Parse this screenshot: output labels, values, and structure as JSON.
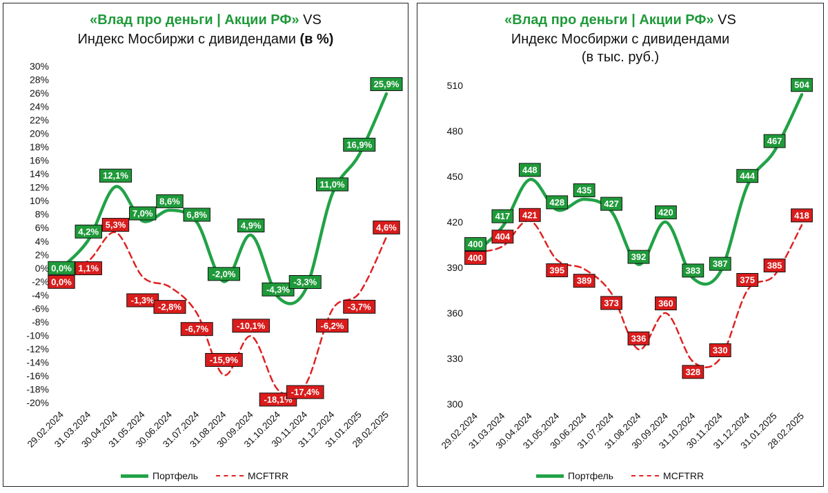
{
  "colors": {
    "portfolio": "#22a247",
    "portfolio_label_bg": "#1f9a3a",
    "index": "#e02020",
    "index_label_bg": "#d91c1c",
    "brand": "#1f9a3a"
  },
  "chart_data": [
    {
      "type": "line",
      "title_brand": "«Влад про деньги | Акции РФ»",
      "title_vs": " VS",
      "title_line2": "Индекс Мосбиржи с дивидендами ",
      "title_unit": "(в %)",
      "categories": [
        "29.02.2024",
        "31.03.2024",
        "30.04.2024",
        "31.05.2024",
        "30.06.2024",
        "31.07.2024",
        "31.08.2024",
        "30.09.2024",
        "31.10.2024",
        "30.11.2024",
        "31.12.2024",
        "31.01.2025",
        "28.02.2025"
      ],
      "ylim": [
        -20,
        30
      ],
      "ystep": 2,
      "yticks": [
        "-20%",
        "-18%",
        "-16%",
        "-14%",
        "-12%",
        "-10%",
        "-8%",
        "-6%",
        "-4%",
        "-2%",
        "0%",
        "2%",
        "4%",
        "6%",
        "8%",
        "10%",
        "12%",
        "14%",
        "16%",
        "18%",
        "20%",
        "22%",
        "24%",
        "26%",
        "28%",
        "30%"
      ],
      "series": [
        {
          "name": "Портфель",
          "values": [
            0.0,
            4.2,
            12.1,
            7.0,
            8.6,
            6.8,
            -2.0,
            4.9,
            -4.3,
            -3.3,
            11.0,
            16.9,
            25.9
          ],
          "labels": [
            "0,0%",
            "4,2%",
            "12,1%",
            "7,0%",
            "8,6%",
            "6,8%",
            "-2,0%",
            "4,9%",
            "-4,3%",
            "-3,3%",
            "11,0%",
            "16,9%",
            "25,9%"
          ]
        },
        {
          "name": "MCFTRR",
          "values": [
            0.0,
            1.1,
            5.3,
            -1.3,
            -2.8,
            -6.7,
            -15.9,
            -10.1,
            -18.1,
            -17.4,
            -6.2,
            -3.7,
            4.6
          ],
          "labels": [
            "0,0%",
            "1,1%",
            "5,3%",
            "-1,3%",
            "-2,8%",
            "-6,7%",
            "-15,9%",
            "-10,1%",
            "-18,1%",
            "-17,4%",
            "-6,2%",
            "-3,7%",
            "4,6%"
          ]
        }
      ],
      "legend": [
        "Портфель",
        "MCFTRR"
      ]
    },
    {
      "type": "line",
      "title_brand": "«Влад про деньги | Акции РФ»",
      "title_vs": " VS",
      "title_line2": "Индекс Мосбиржи с дивидендами",
      "title_unit": "(в тыс. руб.)",
      "categories": [
        "29.02.2024",
        "31.03.2024",
        "30.04.2024",
        "31.05.2024",
        "30.06.2024",
        "31.07.2024",
        "31.08.2024",
        "30.09.2024",
        "31.10.2024",
        "30.11.2024",
        "31.12.2024",
        "31.01.2025",
        "28.02.2025"
      ],
      "ylim": [
        300,
        510
      ],
      "ystep": 30,
      "yticks": [
        "300",
        "330",
        "360",
        "390",
        "420",
        "450",
        "480",
        "510"
      ],
      "series": [
        {
          "name": "Портфель",
          "values": [
            400,
            417,
            448,
            428,
            435,
            427,
            392,
            420,
            383,
            387,
            444,
            467,
            504
          ],
          "labels": [
            "400",
            "417",
            "448",
            "428",
            "435",
            "427",
            "392",
            "420",
            "383",
            "387",
            "444",
            "467",
            "504"
          ]
        },
        {
          "name": "MCFTRR",
          "values": [
            400,
            404,
            421,
            395,
            389,
            373,
            336,
            360,
            328,
            330,
            375,
            385,
            418
          ],
          "labels": [
            "400",
            "404",
            "421",
            "395",
            "389",
            "373",
            "336",
            "360",
            "328",
            "330",
            "375",
            "385",
            "418"
          ]
        }
      ],
      "legend": [
        "Портфель",
        "MCFTRR"
      ]
    }
  ]
}
